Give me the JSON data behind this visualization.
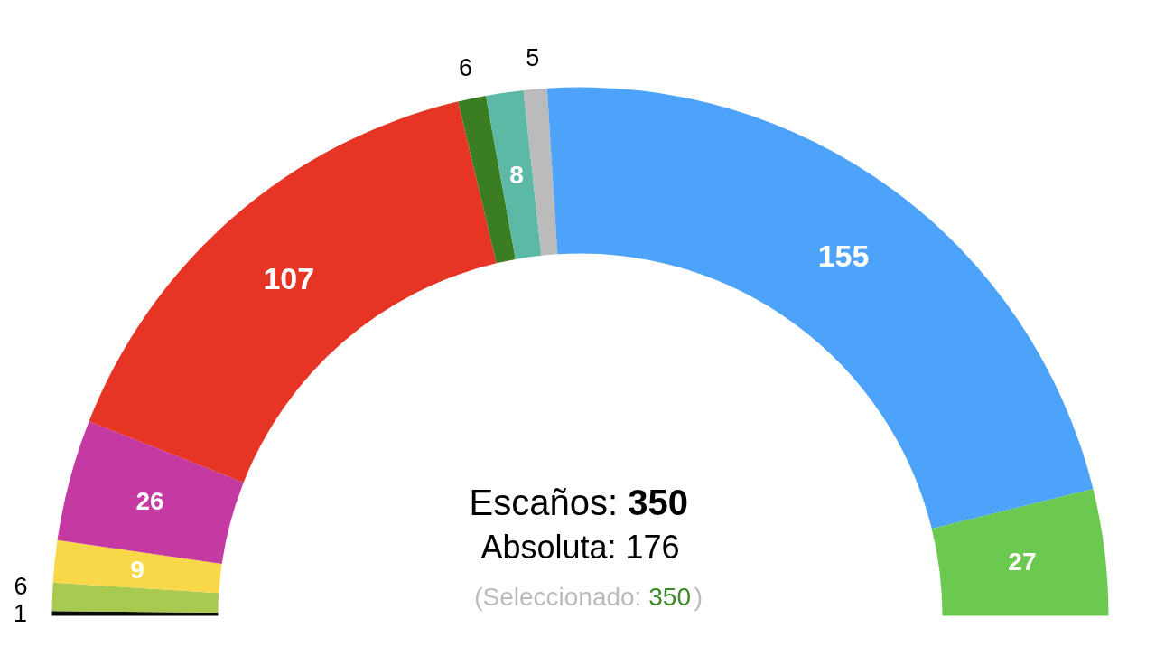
{
  "chart_data": {
    "type": "donut",
    "categories": [
      null,
      null,
      null,
      null,
      null,
      null,
      null,
      null,
      null,
      null
    ],
    "values": [
      1,
      6,
      9,
      26,
      107,
      6,
      8,
      5,
      155,
      27
    ],
    "colors": [
      "#0a0a0a",
      "#a8ca50",
      "#f8d748",
      "#c439a2",
      "#e63425",
      "#3b7d23",
      "#5bb9a6",
      "#bbbbbb",
      "#4da2fa",
      "#6cc94f"
    ],
    "data_labels": true,
    "annotations": [
      "Escaños: 350",
      "Absoluta: 176",
      "(Seleccionado: 350)"
    ]
  }
}
